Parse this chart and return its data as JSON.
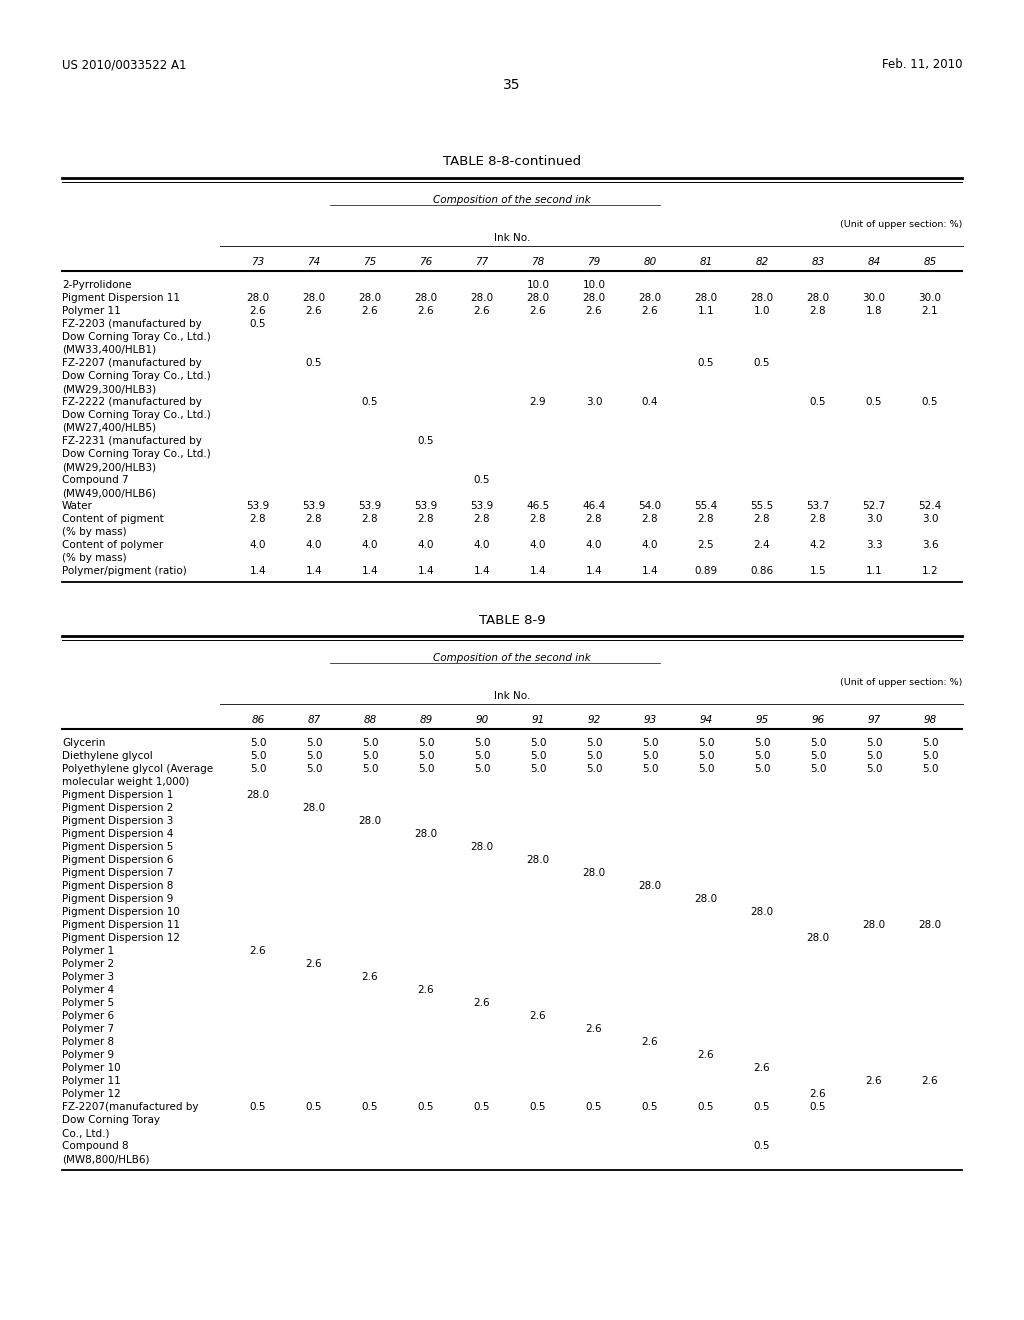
{
  "page_number": "35",
  "patent_number": "US 2010/0033522 A1",
  "patent_date": "Feb. 11, 2010",
  "bg_color": "#ffffff",
  "text_color": "#000000",
  "table1_title": "TABLE 8-8-continued",
  "table1_subtitle": "Composition of the second ink",
  "table1_unit": "(Unit of upper section: %)",
  "table1_ink_label": "Ink No.",
  "table1_cols": [
    "73",
    "74",
    "75",
    "76",
    "77",
    "78",
    "79",
    "80",
    "81",
    "82",
    "83",
    "84",
    "85"
  ],
  "table2_title": "TABLE 8-9",
  "table2_subtitle": "Composition of the second ink",
  "table2_unit": "(Unit of upper section: %)",
  "table2_ink_label": "Ink No.",
  "table2_cols": [
    "86",
    "87",
    "88",
    "89",
    "90",
    "91",
    "92",
    "93",
    "94",
    "95",
    "96",
    "97",
    "98"
  ]
}
